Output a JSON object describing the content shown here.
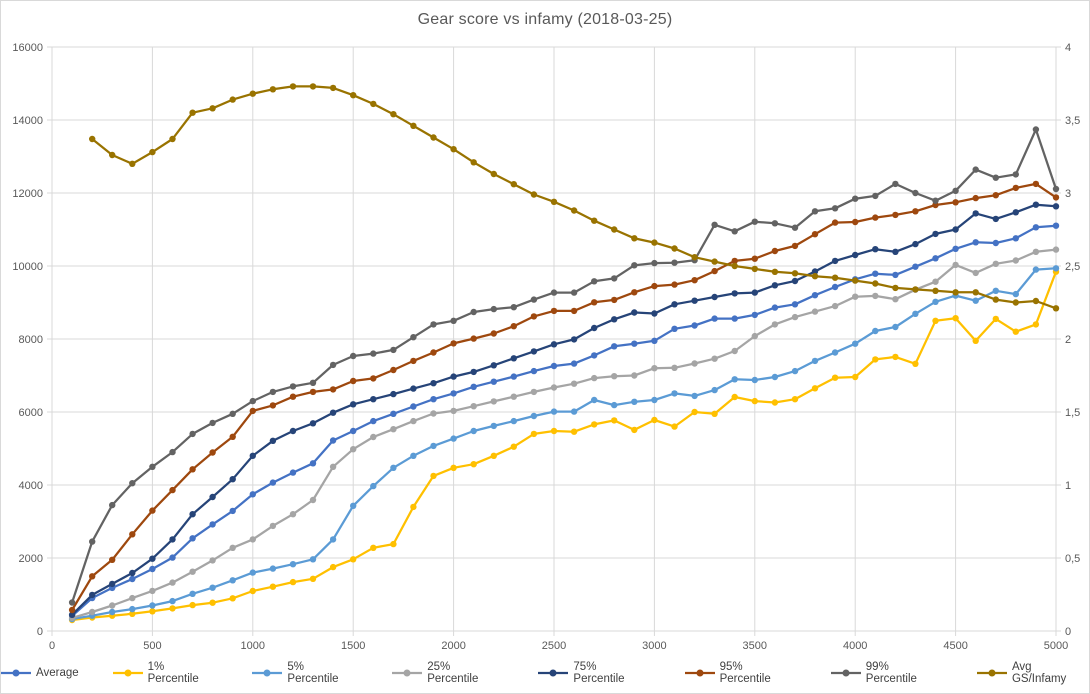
{
  "chart_data": {
    "type": "line",
    "title": "Gear score vs infamy (2018-03-25)",
    "grid": true,
    "legend_position": "bottom",
    "x_axis": {
      "min": 0,
      "max": 5000,
      "tick_step": 500,
      "tick_labels": [
        "0",
        "500",
        "1000",
        "1500",
        "2000",
        "2500",
        "3000",
        "3500",
        "4000",
        "4500",
        "5000"
      ]
    },
    "y_axis_left": {
      "min": 0,
      "max": 16000,
      "tick_step": 2000,
      "tick_labels": [
        "0",
        "2000",
        "4000",
        "6000",
        "8000",
        "10000",
        "12000",
        "14000",
        "16000"
      ]
    },
    "y_axis_right": {
      "min": 0,
      "max": 4,
      "tick_step": 0.5,
      "tick_labels": [
        "0",
        "0,5",
        "1",
        "1,5",
        "2",
        "2,5",
        "3",
        "3,5",
        "4"
      ]
    },
    "series": [
      {
        "name": "Average",
        "color": "#4472C4",
        "axis": "left",
        "x_start": 100,
        "x_step": 100,
        "values": [
          415,
          905,
          1180,
          1425,
          1700,
          2010,
          2540,
          2920,
          3290,
          3745,
          4065,
          4340,
          4595,
          5220,
          5480,
          5750,
          5950,
          6150,
          6350,
          6510,
          6690,
          6830,
          6970,
          7120,
          7260,
          7325,
          7550,
          7800,
          7870,
          7950,
          8280,
          8370,
          8560,
          8560,
          8660,
          8860,
          8950,
          9200,
          9425,
          9635,
          9790,
          9755,
          9980,
          10210,
          10470,
          10650,
          10630,
          10760,
          11060,
          11105
        ]
      },
      {
        "name": "1% Percentile",
        "color": "#FFC000",
        "axis": "left",
        "x_start": 100,
        "x_step": 100,
        "values": [
          300,
          370,
          420,
          470,
          540,
          620,
          710,
          775,
          895,
          1095,
          1215,
          1340,
          1430,
          1750,
          1965,
          2280,
          2380,
          3400,
          4250,
          4470,
          4570,
          4800,
          5050,
          5400,
          5480,
          5460,
          5660,
          5770,
          5510,
          5780,
          5600,
          6000,
          5950,
          6410,
          6300,
          6260,
          6350,
          6650,
          6940,
          6960,
          7440,
          7510,
          7320,
          8500,
          8570,
          7950,
          8550,
          8200,
          8400,
          9845
        ]
      },
      {
        "name": "5% Percentile",
        "color": "#5B9BD5",
        "axis": "left",
        "x_start": 100,
        "x_step": 100,
        "values": [
          330,
          420,
          520,
          600,
          700,
          820,
          1020,
          1185,
          1390,
          1600,
          1710,
          1830,
          1965,
          2510,
          3430,
          3970,
          4470,
          4800,
          5070,
          5270,
          5480,
          5620,
          5750,
          5890,
          6010,
          6010,
          6330,
          6190,
          6280,
          6330,
          6510,
          6440,
          6600,
          6895,
          6877,
          6960,
          7120,
          7400,
          7630,
          7870,
          8220,
          8330,
          8690,
          9020,
          9190,
          9050,
          9320,
          9230,
          9900,
          9936
        ]
      },
      {
        "name": "25% Percentile",
        "color": "#A5A5A5",
        "axis": "left",
        "x_start": 100,
        "x_step": 100,
        "values": [
          360,
          520,
          700,
          900,
          1100,
          1325,
          1625,
          1935,
          2280,
          2510,
          2880,
          3200,
          3590,
          4500,
          4980,
          5315,
          5530,
          5750,
          5960,
          6030,
          6160,
          6290,
          6420,
          6550,
          6670,
          6775,
          6930,
          6980,
          7000,
          7200,
          7210,
          7330,
          7460,
          7670,
          8080,
          8400,
          8600,
          8750,
          8900,
          9160,
          9180,
          9090,
          9350,
          9570,
          10030,
          9810,
          10060,
          10150,
          10390,
          10450
        ]
      },
      {
        "name": "75% Percentile",
        "color": "#264478",
        "axis": "left",
        "x_start": 100,
        "x_step": 100,
        "values": [
          445,
          990,
          1290,
          1590,
          1980,
          2510,
          3200,
          3670,
          4160,
          4800,
          5210,
          5480,
          5690,
          5980,
          6210,
          6350,
          6490,
          6640,
          6790,
          6970,
          7100,
          7280,
          7470,
          7660,
          7855,
          7990,
          8300,
          8540,
          8725,
          8700,
          8950,
          9050,
          9150,
          9250,
          9270,
          9470,
          9590,
          9850,
          10140,
          10300,
          10460,
          10390,
          10600,
          10880,
          11000,
          11440,
          11290,
          11470,
          11680,
          11635
        ]
      },
      {
        "name": "95% Percentile",
        "color": "#9E480E",
        "axis": "left",
        "x_start": 100,
        "x_step": 100,
        "values": [
          575,
          1500,
          1950,
          2650,
          3300,
          3860,
          4430,
          4890,
          5320,
          6030,
          6180,
          6420,
          6550,
          6620,
          6850,
          6920,
          7150,
          7400,
          7630,
          7880,
          8010,
          8150,
          8350,
          8620,
          8770,
          8770,
          9005,
          9070,
          9280,
          9450,
          9490,
          9610,
          9860,
          10140,
          10200,
          10410,
          10550,
          10870,
          11190,
          11205,
          11325,
          11400,
          11500,
          11670,
          11745,
          11860,
          11940,
          12140,
          12250,
          11880
        ]
      },
      {
        "name": "99% Percentile",
        "color": "#636363",
        "axis": "left",
        "x_start": 100,
        "x_step": 100,
        "values": [
          780,
          2450,
          3450,
          4050,
          4500,
          4900,
          5400,
          5700,
          5950,
          6300,
          6550,
          6700,
          6800,
          7290,
          7535,
          7600,
          7700,
          8050,
          8400,
          8500,
          8740,
          8820,
          8870,
          9080,
          9270,
          9270,
          9580,
          9660,
          10020,
          10080,
          10090,
          10160,
          11130,
          10950,
          11215,
          11170,
          11050,
          11500,
          11580,
          11845,
          11920,
          12250,
          12000,
          11790,
          12060,
          12640,
          12420,
          12510,
          13740,
          12110
        ]
      },
      {
        "name": "Avg GS/Infamy",
        "color": "#997300",
        "axis": "right",
        "x_start": 200,
        "x_step": 100,
        "values": [
          3.37,
          3.26,
          3.2,
          3.28,
          3.37,
          3.55,
          3.58,
          3.64,
          3.68,
          3.71,
          3.73,
          3.73,
          3.72,
          3.67,
          3.61,
          3.54,
          3.46,
          3.38,
          3.3,
          3.21,
          3.13,
          3.06,
          2.99,
          2.94,
          2.88,
          2.81,
          2.75,
          2.69,
          2.66,
          2.62,
          2.56,
          2.53,
          2.5,
          2.48,
          2.46,
          2.45,
          2.43,
          2.42,
          2.4,
          2.38,
          2.35,
          2.34,
          2.33,
          2.32,
          2.32,
          2.27,
          2.25,
          2.26,
          2.21
        ]
      }
    ],
    "style": {
      "gridline_color": "#d9d9d9",
      "plot_border_color": "#d9d9d9",
      "title_color": "#595959",
      "tick_label_color": "#595959",
      "background": "#ffffff"
    }
  }
}
